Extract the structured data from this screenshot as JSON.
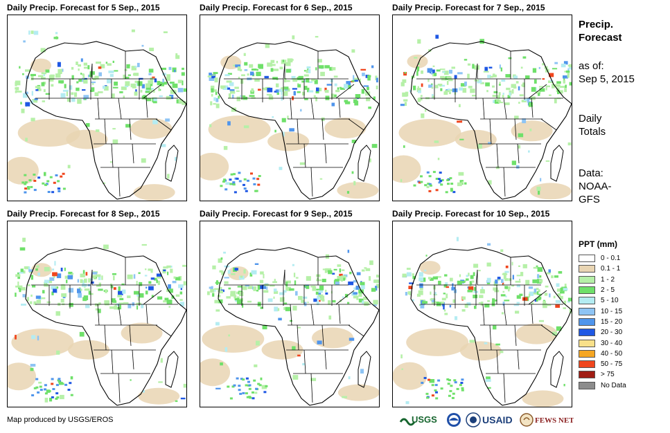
{
  "panels": [
    {
      "title": "Daily Precip. Forecast for 5 Sep., 2015",
      "day": 5
    },
    {
      "title": "Daily Precip. Forecast for 6 Sep., 2015",
      "day": 6
    },
    {
      "title": "Daily Precip. Forecast for 7 Sep., 2015",
      "day": 7
    },
    {
      "title": "Daily Precip. Forecast for 8 Sep., 2015",
      "day": 8
    },
    {
      "title": "Daily Precip. Forecast for 9 Sep., 2015",
      "day": 9
    },
    {
      "title": "Daily Precip. Forecast for 10 Sep., 2015",
      "day": 10
    }
  ],
  "info": {
    "title_line1": "Precip.",
    "title_line2": "Forecast",
    "asof_line1": "as of:",
    "asof_line2": "Sep 5, 2015",
    "totals_line1": "Daily",
    "totals_line2": "Totals",
    "data_line1": "Data:",
    "data_line2": "NOAA-",
    "data_line3": "GFS"
  },
  "legend": {
    "title": "PPT (mm)",
    "items": [
      {
        "label": "0 - 0.1",
        "color": "#ffffff"
      },
      {
        "label": "0.1 - 1",
        "color": "#e9d5b3"
      },
      {
        "label": "1 - 2",
        "color": "#b6f0a8"
      },
      {
        "label": "2 - 5",
        "color": "#6fe06a"
      },
      {
        "label": "5 - 10",
        "color": "#b4ecf2"
      },
      {
        "label": "10 - 15",
        "color": "#8ec4f4"
      },
      {
        "label": "15 - 20",
        "color": "#4f95ec"
      },
      {
        "label": "20 - 30",
        "color": "#1f58e4"
      },
      {
        "label": "30 - 40",
        "color": "#f8e08a"
      },
      {
        "label": "40 - 50",
        "color": "#f5a623"
      },
      {
        "label": "50 - 75",
        "color": "#f0461e"
      },
      {
        "label": "> 75",
        "color": "#a01d14"
      },
      {
        "label": "No Data",
        "color": "#8c8c8c"
      }
    ]
  },
  "credit": "Map produced by USGS/EROS",
  "logos": {
    "usgs": "USGS",
    "usaid": "USAID",
    "fewsnet": "FEWS NET",
    "noaa": "NOAA"
  }
}
